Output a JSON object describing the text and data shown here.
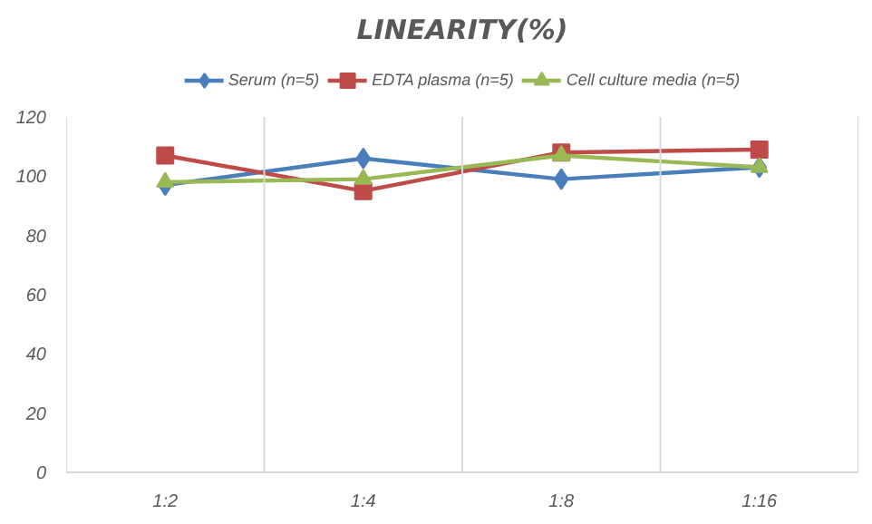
{
  "chart_data": {
    "type": "line",
    "title": "LINEARITY(%)",
    "categories": [
      "1:2",
      "1:4",
      "1:8",
      "1:16"
    ],
    "series": [
      {
        "name": "Serum (n=5)",
        "color": "#4a7ebb",
        "marker": "diamond",
        "values": [
          97,
          106,
          99,
          103
        ]
      },
      {
        "name": "EDTA plasma (n=5)",
        "color": "#be4b48",
        "marker": "square",
        "values": [
          107,
          95,
          108,
          109
        ]
      },
      {
        "name": "Cell culture media (n=5)",
        "color": "#98b954",
        "marker": "triangle",
        "values": [
          98,
          99,
          107,
          103
        ]
      }
    ],
    "ylim": [
      0,
      120
    ],
    "yticks": [
      0,
      20,
      40,
      60,
      80,
      100,
      120
    ],
    "grid": "x",
    "legend": "top",
    "line_style": "solid"
  }
}
